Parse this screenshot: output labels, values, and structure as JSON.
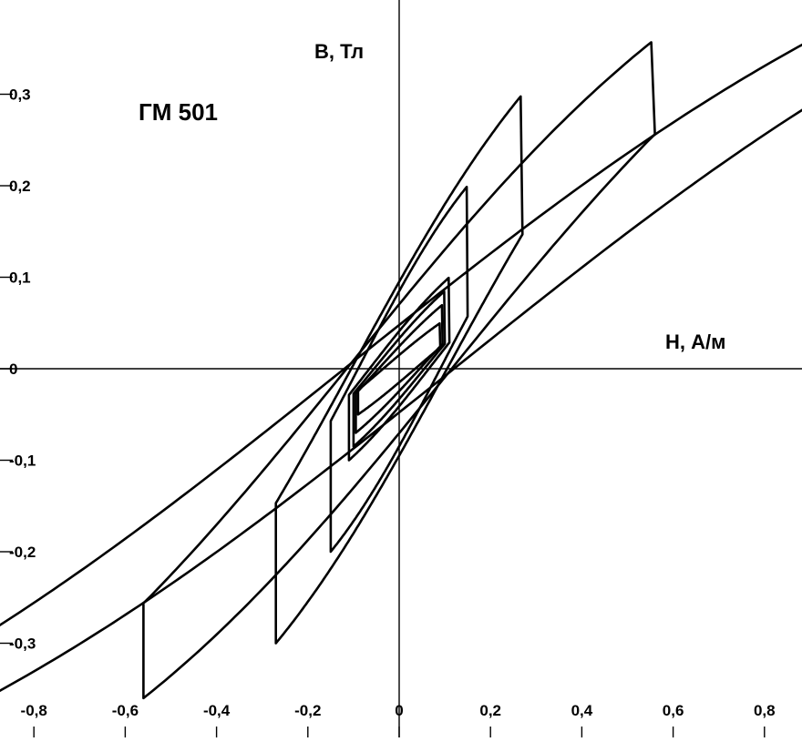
{
  "chart_data": {
    "type": "line",
    "title": "ГМ 501",
    "xlabel": "H, А/м",
    "ylabel": "B, Тл",
    "xlim": [
      -1.02,
      1.02
    ],
    "ylim": [
      -0.39,
      0.39
    ],
    "grid": false,
    "legend": "none",
    "x_ticks": [
      {
        "value": -0.8,
        "label": "-0,8"
      },
      {
        "value": -0.6,
        "label": "-0,6"
      },
      {
        "value": -0.4,
        "label": "-0,4"
      },
      {
        "value": -0.2,
        "label": "-0,2"
      },
      {
        "value": 0,
        "label": "0"
      },
      {
        "value": 0.2,
        "label": "0,2"
      },
      {
        "value": 0.4,
        "label": "0,4"
      },
      {
        "value": 0.6,
        "label": "0,6"
      },
      {
        "value": 0.8,
        "label": "0,8"
      }
    ],
    "y_ticks": [
      {
        "value": 0.3,
        "label": "0,3"
      },
      {
        "value": 0.2,
        "label": "0,2"
      },
      {
        "value": 0.1,
        "label": "0,1"
      },
      {
        "value": 0,
        "label": "0"
      },
      {
        "value": -0.1,
        "label": "-0,1"
      },
      {
        "value": -0.2,
        "label": "-0,2"
      },
      {
        "value": -0.3,
        "label": "-0,3"
      }
    ],
    "series": [
      {
        "Hm": 1.02,
        "Bm": 0.39,
        "Hc": 0.12,
        "Br": 0.24
      },
      {
        "Hm": 0.56,
        "Bm": 0.36,
        "Hc": 0.115,
        "Br": 0.215
      },
      {
        "Hm": 0.27,
        "Bm": 0.3,
        "Hc": 0.105,
        "Br": 0.175
      },
      {
        "Hm": 0.15,
        "Bm": 0.2,
        "Hc": 0.09,
        "Br": 0.12
      },
      {
        "Hm": 0.11,
        "Bm": 0.1,
        "Hc": 0.065,
        "Br": 0.055
      },
      {
        "Hm": 0.1,
        "Bm": 0.085,
        "Hc": 0.055,
        "Br": 0.045
      },
      {
        "Hm": 0.095,
        "Bm": 0.07,
        "Hc": 0.045,
        "Br": 0.035
      },
      {
        "Hm": 0.09,
        "Bm": 0.05,
        "Hc": 0.035,
        "Br": 0.022
      }
    ]
  }
}
